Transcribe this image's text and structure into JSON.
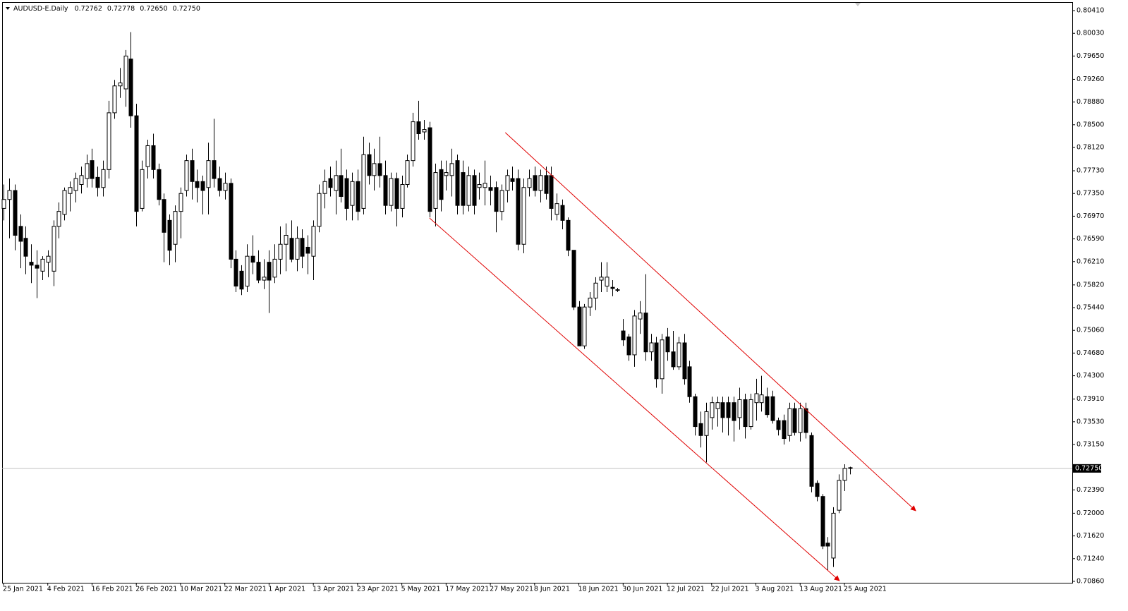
{
  "chart_data": {
    "type": "candlestick",
    "title": "AUDUSD-E.Daily",
    "quote_labels": [
      "0.72762",
      "0.72778",
      "0.72650",
      "0.72750"
    ],
    "categories": [
      "25 Jan 2021",
      null,
      null,
      null,
      null,
      null,
      null,
      null,
      "4 Feb 2021",
      null,
      null,
      null,
      null,
      null,
      null,
      null,
      "16 Feb 2021",
      null,
      null,
      null,
      null,
      null,
      null,
      null,
      "26 Feb 2021",
      null,
      null,
      null,
      null,
      null,
      null,
      null,
      "10 Mar 2021",
      null,
      null,
      null,
      null,
      null,
      null,
      null,
      "22 Mar 2021",
      null,
      null,
      null,
      null,
      null,
      null,
      null,
      "1 Apr 2021",
      null,
      null,
      null,
      null,
      null,
      null,
      null,
      "13 Apr 2021",
      null,
      null,
      null,
      null,
      null,
      null,
      null,
      "23 Apr 2021",
      null,
      null,
      null,
      null,
      null,
      null,
      null,
      "5 May 2021",
      null,
      null,
      null,
      null,
      null,
      null,
      null,
      "17 May 2021",
      null,
      null,
      null,
      null,
      null,
      null,
      null,
      "27 May 2021",
      null,
      null,
      null,
      null,
      null,
      null,
      null,
      "8 Jun 2021",
      null,
      null,
      null,
      null,
      null,
      null,
      null,
      "18 Jun 2021",
      null,
      null,
      null,
      null,
      null,
      null,
      null,
      "30 Jun 2021",
      null,
      null,
      null,
      null,
      null,
      null,
      null,
      "12 Jul 2021",
      null,
      null,
      null,
      null,
      null,
      null,
      null,
      "22 Jul 2021",
      null,
      null,
      null,
      null,
      null,
      null,
      null,
      "3 Aug 2021",
      null,
      null,
      null,
      null,
      null,
      null,
      null,
      "13 Aug 2021",
      null,
      null,
      null,
      null,
      null,
      null,
      null,
      "25 Aug 2021",
      null
    ],
    "open": [
      0.771,
      0.7725,
      0.774,
      0.768,
      0.766,
      0.762,
      0.7615,
      0.7605,
      0.762,
      0.7605,
      0.768,
      0.77,
      0.7735,
      0.774,
      0.775,
      0.776,
      0.779,
      0.7762,
      0.7745,
      0.7775,
      0.787,
      0.7915,
      0.791,
      0.796,
      0.7865,
      0.771,
      0.778,
      0.7815,
      0.7775,
      0.7725,
      0.769,
      0.765,
      0.7705,
      0.774,
      0.779,
      0.7755,
      0.7755,
      0.7745,
      0.779,
      0.776,
      0.774,
      0.7752,
      0.7625,
      0.7605,
      0.758,
      0.763,
      0.762,
      0.759,
      0.762,
      0.7595,
      0.7625,
      0.765,
      0.766,
      0.7625,
      0.766,
      0.7645,
      0.763,
      0.768,
      0.7735,
      0.776,
      0.774,
      0.7765,
      0.776,
      0.7715,
      0.7755,
      0.771,
      0.78,
      0.7765,
      0.7785,
      0.7765,
      0.7715,
      0.776,
      0.771,
      0.775,
      0.779,
      0.7855,
      0.7838,
      0.7845,
      0.771,
      0.7775,
      0.7765,
      0.7765,
      0.779,
      0.777,
      0.7715,
      0.7765,
      0.7745,
      0.7745,
      0.7745,
      0.7745,
      0.7705,
      0.774,
      0.776,
      0.776,
      0.765,
      0.7745,
      0.7765,
      0.774,
      0.7765,
      0.7765,
      0.77,
      0.7715,
      0.769,
      0.764,
      0.7545,
      0.748,
      0.7545,
      0.756,
      0.759,
      0.758,
      0.7578,
      0.7573,
      0.7505,
      0.7495,
      0.7465,
      0.7525,
      0.7535,
      0.747,
      0.7485,
      0.7425,
      0.7495,
      0.747,
      0.7445,
      0.7485,
      0.7445,
      0.7395,
      0.735,
      0.733,
      0.736,
      0.7375,
      0.7385,
      0.7385,
      0.7385,
      0.736,
      0.739,
      0.7345,
      0.7385,
      0.7385,
      0.7395,
      0.7395,
      0.7355,
      0.7355,
      0.733,
      0.7375,
      0.7335,
      0.7375,
      0.733,
      0.725,
      0.7228,
      0.715,
      0.7125,
      0.7205,
      0.7255,
      0.72762
    ],
    "high": [
      0.775,
      0.776,
      0.775,
      0.77,
      0.768,
      0.765,
      0.764,
      0.763,
      0.764,
      0.769,
      0.772,
      0.7745,
      0.7755,
      0.777,
      0.778,
      0.78,
      0.781,
      0.778,
      0.779,
      0.789,
      0.7925,
      0.7945,
      0.7975,
      0.8005,
      0.7885,
      0.779,
      0.7825,
      0.7835,
      0.7785,
      0.7735,
      0.77,
      0.7715,
      0.7745,
      0.78,
      0.781,
      0.7775,
      0.7765,
      0.782,
      0.786,
      0.778,
      0.777,
      0.776,
      0.764,
      0.7615,
      0.765,
      0.7665,
      0.764,
      0.7625,
      0.764,
      0.765,
      0.768,
      0.7685,
      0.769,
      0.768,
      0.7675,
      0.7665,
      0.769,
      0.775,
      0.7775,
      0.778,
      0.779,
      0.781,
      0.7775,
      0.777,
      0.7775,
      0.783,
      0.782,
      0.781,
      0.783,
      0.779,
      0.777,
      0.777,
      0.7765,
      0.78,
      0.787,
      0.789,
      0.7858,
      0.7855,
      0.7785,
      0.779,
      0.779,
      0.781,
      0.78,
      0.779,
      0.778,
      0.7775,
      0.777,
      0.779,
      0.7765,
      0.7755,
      0.775,
      0.7775,
      0.778,
      0.7775,
      0.776,
      0.7775,
      0.778,
      0.7775,
      0.778,
      0.778,
      0.7735,
      0.7725,
      0.7695,
      0.764,
      0.7555,
      0.755,
      0.757,
      0.7595,
      0.762,
      0.762,
      0.759,
      0.7577,
      0.7525,
      0.75,
      0.754,
      0.7555,
      0.76,
      0.75,
      0.7495,
      0.75,
      0.751,
      0.7505,
      0.7495,
      0.75,
      0.7455,
      0.74,
      0.737,
      0.7385,
      0.7395,
      0.7395,
      0.7395,
      0.7395,
      0.7395,
      0.741,
      0.74,
      0.74,
      0.7425,
      0.743,
      0.741,
      0.7405,
      0.736,
      0.7365,
      0.7385,
      0.7385,
      0.7385,
      0.7385,
      0.7335,
      0.7255,
      0.7232,
      0.716,
      0.721,
      0.7265,
      0.7282,
      0.72778
    ],
    "low": [
      0.769,
      0.766,
      0.764,
      0.761,
      0.76,
      0.7585,
      0.756,
      0.759,
      0.7595,
      0.758,
      0.766,
      0.769,
      0.7705,
      0.772,
      0.7735,
      0.7745,
      0.7745,
      0.773,
      0.773,
      0.776,
      0.786,
      0.7895,
      0.788,
      0.7845,
      0.768,
      0.7705,
      0.776,
      0.776,
      0.7715,
      0.762,
      0.7615,
      0.762,
      0.766,
      0.773,
      0.7725,
      0.772,
      0.77,
      0.77,
      0.7745,
      0.773,
      0.7725,
      0.761,
      0.757,
      0.7565,
      0.757,
      0.76,
      0.7585,
      0.7575,
      0.7535,
      0.7585,
      0.76,
      0.7605,
      0.762,
      0.7605,
      0.761,
      0.76,
      0.759,
      0.767,
      0.771,
      0.773,
      0.77,
      0.772,
      0.769,
      0.769,
      0.769,
      0.77,
      0.775,
      0.774,
      0.7745,
      0.77,
      0.7705,
      0.768,
      0.7695,
      0.7745,
      0.778,
      0.7825,
      0.7825,
      0.7695,
      0.768,
      0.7705,
      0.774,
      0.773,
      0.77,
      0.77,
      0.7705,
      0.77,
      0.7725,
      0.7715,
      0.7715,
      0.767,
      0.769,
      0.772,
      0.774,
      0.764,
      0.7635,
      0.773,
      0.773,
      0.772,
      0.7725,
      0.769,
      0.769,
      0.7675,
      0.763,
      0.754,
      0.748,
      0.7475,
      0.753,
      0.754,
      0.757,
      0.757,
      0.7563,
      0.757,
      0.748,
      0.7455,
      0.7445,
      0.75,
      0.7455,
      0.7455,
      0.741,
      0.74,
      0.7455,
      0.744,
      0.744,
      0.7415,
      0.7385,
      0.733,
      0.731,
      0.7285,
      0.734,
      0.7345,
      0.7335,
      0.733,
      0.732,
      0.734,
      0.7325,
      0.734,
      0.7355,
      0.737,
      0.736,
      0.735,
      0.733,
      0.7315,
      0.732,
      0.733,
      0.732,
      0.7325,
      0.7235,
      0.722,
      0.714,
      0.7105,
      0.711,
      0.72,
      0.7237,
      0.7265
    ],
    "close": [
      0.7725,
      0.774,
      0.7665,
      0.7655,
      0.763,
      0.7615,
      0.761,
      0.7625,
      0.763,
      0.768,
      0.7705,
      0.774,
      0.7745,
      0.776,
      0.7765,
      0.7785,
      0.776,
      0.7745,
      0.7775,
      0.787,
      0.7915,
      0.792,
      0.7965,
      0.7865,
      0.7705,
      0.7775,
      0.7815,
      0.7775,
      0.7725,
      0.767,
      0.764,
      0.7705,
      0.7735,
      0.779,
      0.7755,
      0.7745,
      0.774,
      0.779,
      0.776,
      0.774,
      0.7752,
      0.7625,
      0.758,
      0.7575,
      0.763,
      0.762,
      0.759,
      0.7595,
      0.759,
      0.7625,
      0.765,
      0.7665,
      0.7625,
      0.766,
      0.763,
      0.7635,
      0.768,
      0.7735,
      0.7755,
      0.7745,
      0.7765,
      0.773,
      0.771,
      0.7755,
      0.7705,
      0.78,
      0.7765,
      0.7785,
      0.7765,
      0.7715,
      0.776,
      0.771,
      0.775,
      0.779,
      0.7855,
      0.7835,
      0.7842,
      0.7705,
      0.777,
      0.7725,
      0.777,
      0.7785,
      0.7715,
      0.7715,
      0.7765,
      0.7715,
      0.775,
      0.7752,
      0.774,
      0.7705,
      0.774,
      0.7765,
      0.7755,
      0.765,
      0.7745,
      0.776,
      0.774,
      0.7765,
      0.7735,
      0.771,
      0.7718,
      0.769,
      0.764,
      0.7545,
      0.748,
      0.7545,
      0.756,
      0.7585,
      0.7595,
      0.7595,
      0.7576,
      0.7574,
      0.749,
      0.7465,
      0.753,
      0.7535,
      0.747,
      0.7485,
      0.7425,
      0.749,
      0.747,
      0.7445,
      0.7485,
      0.7425,
      0.7395,
      0.7345,
      0.733,
      0.737,
      0.7385,
      0.7385,
      0.736,
      0.736,
      0.7355,
      0.739,
      0.7345,
      0.739,
      0.74,
      0.7398,
      0.7365,
      0.7355,
      0.734,
      0.7325,
      0.7375,
      0.7335,
      0.7375,
      0.7335,
      0.7245,
      0.7228,
      0.7145,
      0.7145,
      0.72,
      0.7255,
      0.7275,
      0.7275
    ],
    "up_color": "#ffffff",
    "down_color": "#000000",
    "ylim": [
      0.70836,
      0.80552
    ],
    "yticks": [
      {
        "value": 0.8041,
        "label": "0.80410"
      },
      {
        "value": 0.8003,
        "label": "0.80030"
      },
      {
        "value": 0.7965,
        "label": "0.79650"
      },
      {
        "value": 0.7926,
        "label": "0.79260"
      },
      {
        "value": 0.7888,
        "label": "0.78880"
      },
      {
        "value": 0.785,
        "label": "0.78500"
      },
      {
        "value": 0.7812,
        "label": "0.78120"
      },
      {
        "value": 0.7773,
        "label": "0.77730"
      },
      {
        "value": 0.7735,
        "label": "0.77350"
      },
      {
        "value": 0.7697,
        "label": "0.76970"
      },
      {
        "value": 0.7659,
        "label": "0.76590"
      },
      {
        "value": 0.7621,
        "label": "0.76210"
      },
      {
        "value": 0.7582,
        "label": "0.75820"
      },
      {
        "value": 0.7544,
        "label": "0.75440"
      },
      {
        "value": 0.7506,
        "label": "0.75060"
      },
      {
        "value": 0.7468,
        "label": "0.74680"
      },
      {
        "value": 0.743,
        "label": "0.74300"
      },
      {
        "value": 0.7391,
        "label": "0.73910"
      },
      {
        "value": 0.7353,
        "label": "0.73530"
      },
      {
        "value": 0.7315,
        "label": "0.73150"
      },
      {
        "value": 0.7239,
        "label": "0.72390"
      },
      {
        "value": 0.72,
        "label": "0.72000"
      },
      {
        "value": 0.7162,
        "label": "0.71620"
      },
      {
        "value": 0.7124,
        "label": "0.71240"
      },
      {
        "value": 0.7086,
        "label": "0.70860"
      }
    ],
    "current_price": {
      "value": 0.7275,
      "label": "0.72750"
    },
    "trendline_color": "#e00000",
    "trendlines": [
      {
        "x": [
          90.7,
          164.9
        ],
        "y": [
          0.7837,
          0.7204
        ]
      },
      {
        "x": [
          77.0,
          151.1
        ],
        "y": [
          0.7694,
          0.7087
        ]
      }
    ]
  }
}
